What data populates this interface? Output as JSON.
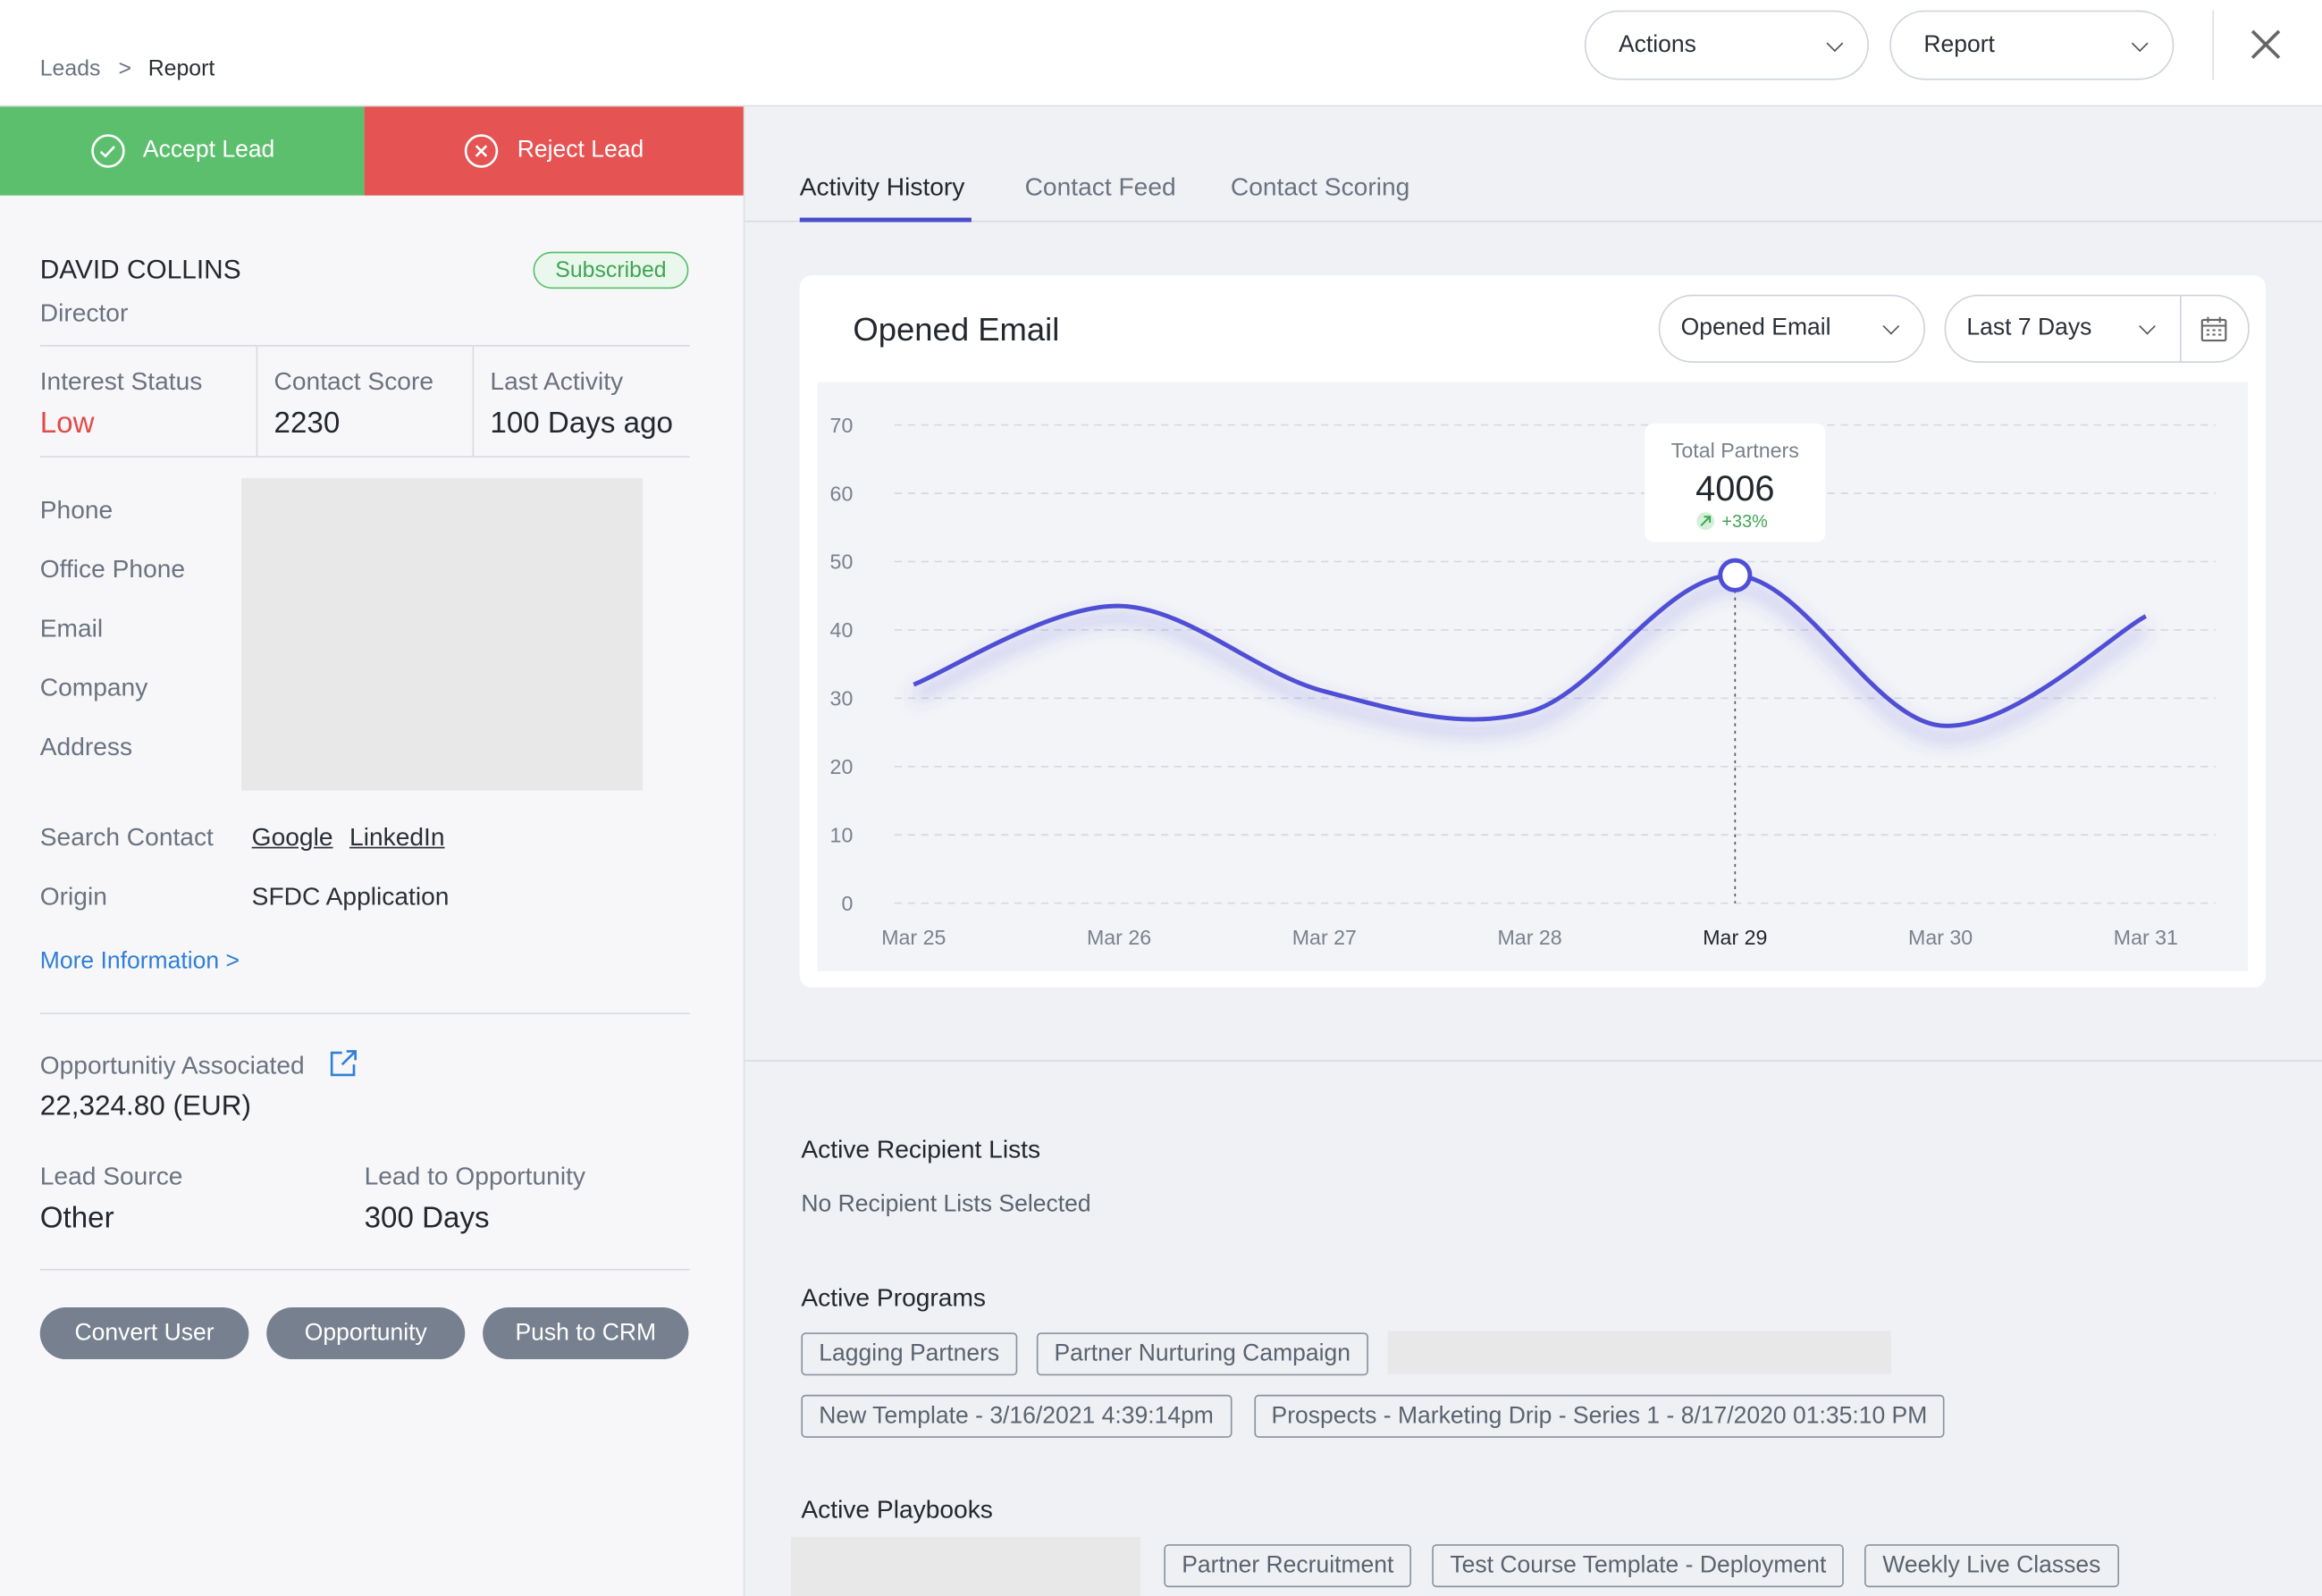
{
  "breadcrumb": [
    "Leads",
    "Report"
  ],
  "breadcrumb_separator": ">",
  "header_buttons": [
    "Actions",
    "Report"
  ],
  "lead_actions": [
    "Accept Lead",
    "Reject Lead"
  ],
  "contact": {
    "name": "DAVID COLLINS",
    "title": "Director",
    "status": "Subscribed"
  },
  "stats": [
    {
      "label": "Interest Status",
      "value": "Low"
    },
    {
      "label": "Contact Score",
      "value": "2230"
    },
    {
      "label": "Last Activity",
      "value": "100 Days ago"
    }
  ],
  "fields": [
    "Phone",
    "Office Phone",
    "Email",
    "Company",
    "Address"
  ],
  "search": {
    "label": "Search Contact",
    "links": [
      "Google",
      "LinkedIn"
    ]
  },
  "origin": {
    "label": "Origin",
    "value": "SFDC Application"
  },
  "more_link": "More Information >",
  "opportunity": {
    "label": "Opportunitiy Associated",
    "value": "22,324.80 (EUR)"
  },
  "lead_source": {
    "label": "Lead Source",
    "value": "Other"
  },
  "lead_to_opportunity": {
    "label": "Lead to Opportunity",
    "value": "300 Days"
  },
  "buttons": [
    "Convert User",
    "Opportunity",
    "Push to CRM"
  ],
  "tabs": [
    "Activity History",
    "Contact Feed",
    "Contact Scoring"
  ],
  "chart_data": {
    "type": "line",
    "title": "Opened Email",
    "filters": [
      "Opened Email",
      "Last 7 Days"
    ],
    "categories": [
      "Mar 25",
      "Mar 26",
      "Mar 27",
      "Mar 28",
      "Mar 29",
      "Mar 30",
      "Mar 31"
    ],
    "values": [
      32,
      43.5,
      31,
      28,
      48,
      26,
      42
    ],
    "ylim": [
      0,
      70
    ],
    "yticks": [
      0,
      10,
      20,
      30,
      40,
      50,
      60,
      70
    ],
    "grid": true,
    "color": "#4f4fd6",
    "highlight": "Mar 29",
    "tooltip": {
      "label": "Total Partners",
      "value": 4006,
      "change": "+33%"
    }
  },
  "recipient_lists": {
    "title": "Active Recipient Lists",
    "text": "No Recipient Lists Selected"
  },
  "programs": {
    "title": "Active Programs",
    "items": [
      "Lagging Partners",
      "Partner Nurturing Campaign",
      "New Template - 3/16/2021 4:39:14pm",
      "Prospects - Marketing Drip - Series 1 - 8/17/2020 01:35:10 PM"
    ]
  },
  "playbooks": {
    "title": "Active Playbooks",
    "items": [
      "Partner Recruitment",
      "Test Course Template - Deployment",
      "Weekly Live Classes"
    ]
  }
}
